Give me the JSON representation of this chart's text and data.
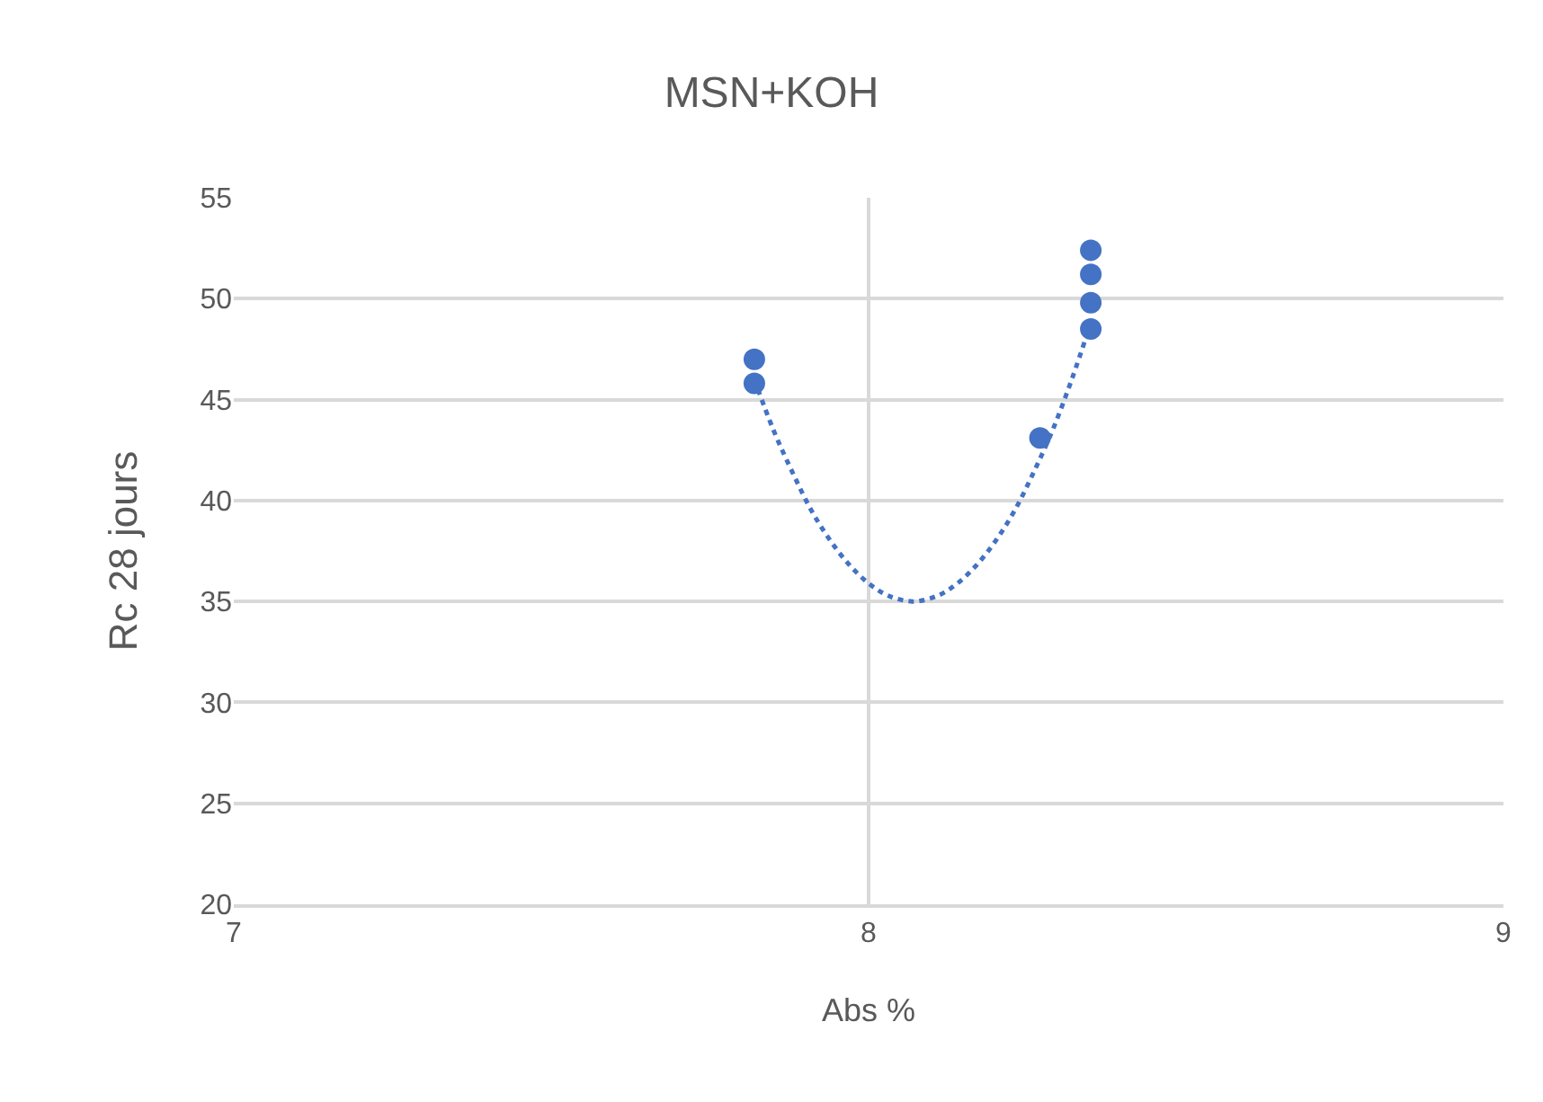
{
  "chart_data": {
    "type": "scatter",
    "title": "MSN+KOH",
    "xlabel": "Abs %",
    "ylabel": "Rc 28 jours",
    "xlim": [
      7,
      9
    ],
    "xticks": [
      7,
      8,
      9
    ],
    "ylim": [
      20,
      55
    ],
    "yticks": [
      20,
      25,
      30,
      35,
      40,
      45,
      50,
      55
    ],
    "grid": true,
    "marker": "circle",
    "series": [
      {
        "color": "#4472c4",
        "x": [
          7.82,
          7.82,
          8.27,
          8.35,
          8.35,
          8.35,
          8.35
        ],
        "values": [
          47.0,
          45.8,
          43.1,
          52.4,
          51.2,
          49.8,
          48.5
        ]
      },
      {
        "type": "line",
        "color": "#4472c4",
        "line_style": "dotted",
        "marker": "none",
        "x": [
          7.82,
          7.85,
          7.88,
          7.91,
          7.94,
          7.97,
          8.0,
          8.03,
          8.07,
          8.11,
          8.14,
          8.17,
          8.2,
          8.23,
          8.26,
          8.29,
          8.32,
          8.35
        ],
        "values": [
          46.0,
          43.5,
          41.4,
          39.5,
          38.0,
          36.8,
          35.9,
          35.3,
          35.0,
          35.3,
          35.9,
          36.8,
          38.0,
          39.5,
          41.4,
          43.5,
          46.0,
          48.8
        ]
      }
    ]
  }
}
